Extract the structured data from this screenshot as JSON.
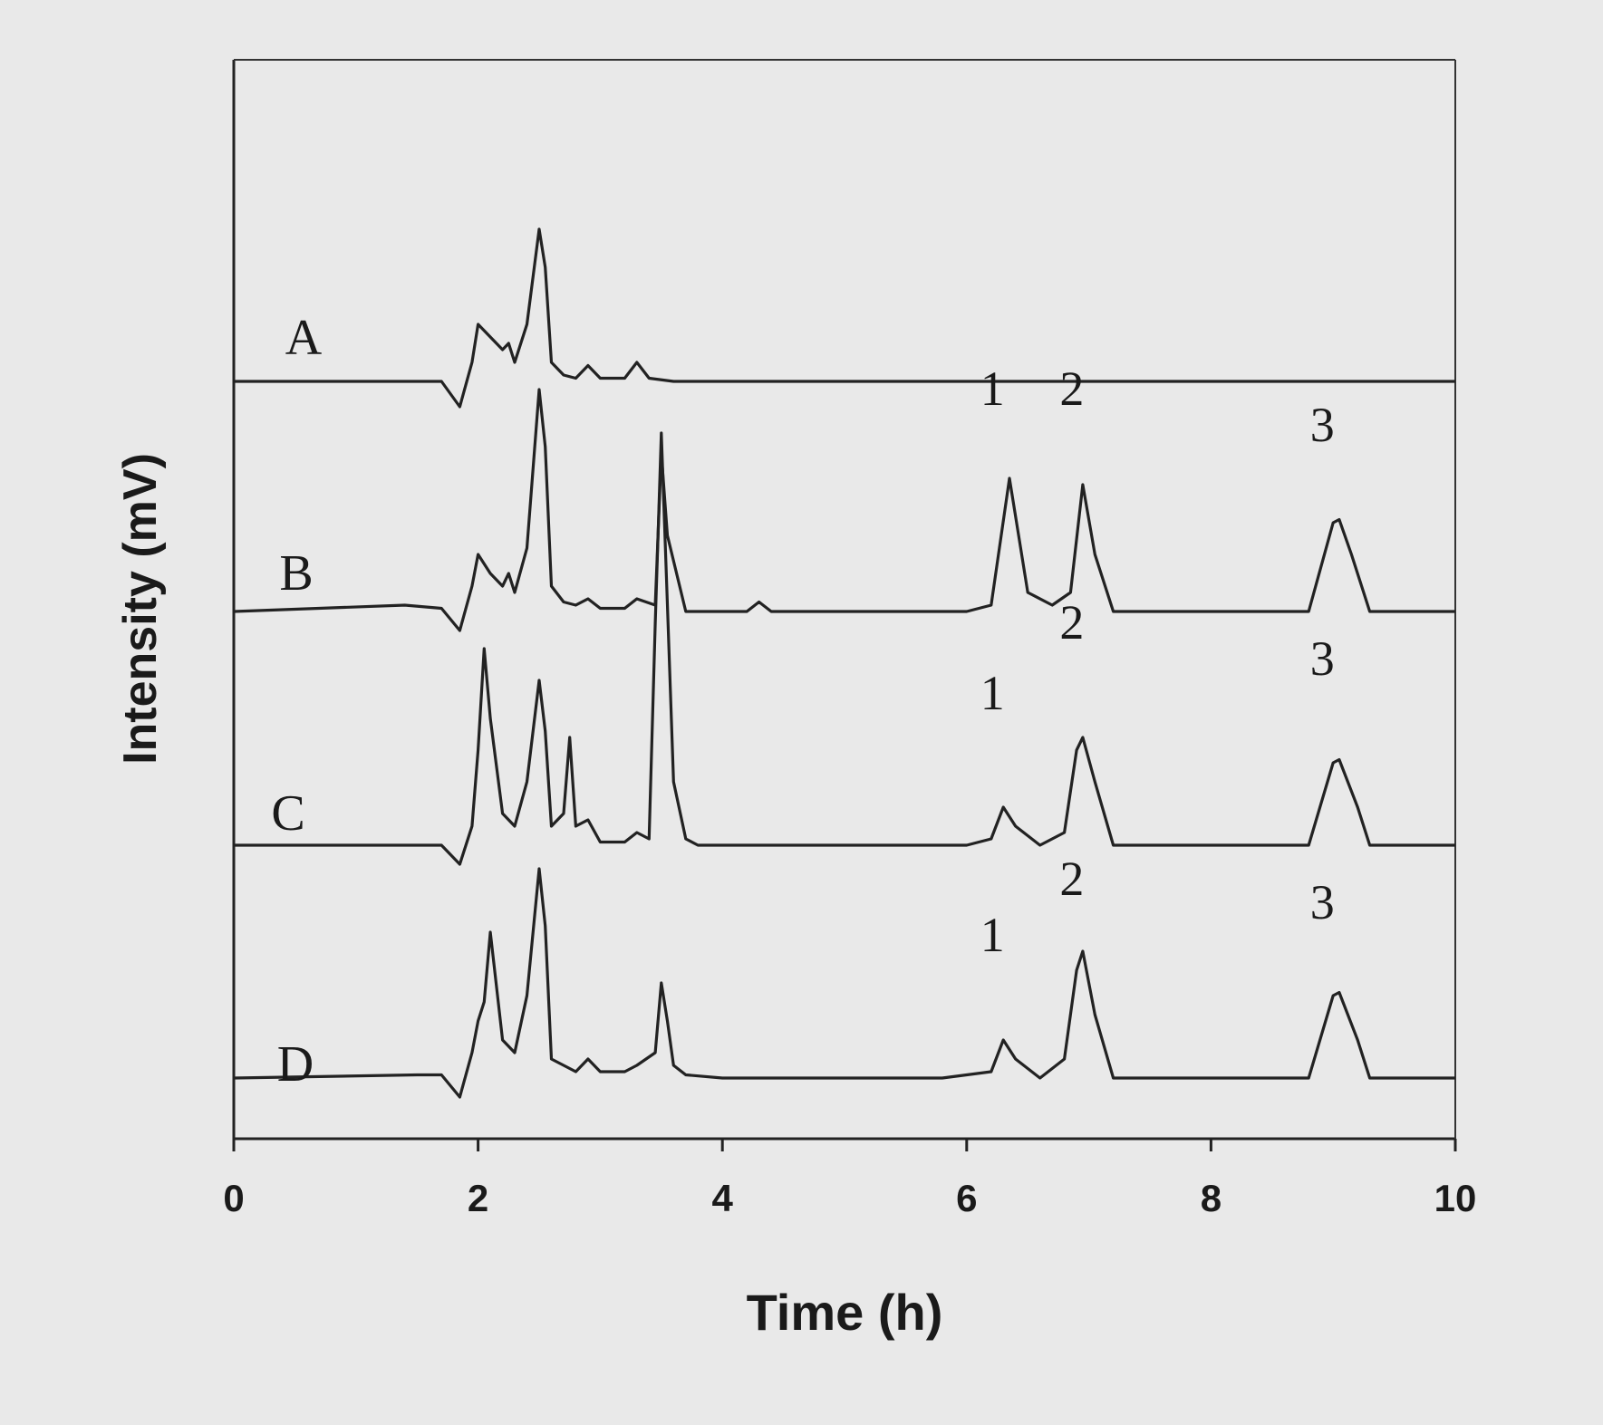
{
  "chart_data": {
    "type": "line",
    "xlabel": "Time (h)",
    "ylabel": "Intensity (mV)",
    "xlim": [
      0,
      10
    ],
    "xticks": [
      "0",
      "2",
      "4",
      "6",
      "8",
      "10"
    ],
    "y_ticks_shown": false,
    "legend": "none",
    "series": [
      {
        "name": "A",
        "x": [
          0,
          1.5,
          1.7,
          1.85,
          1.95,
          2.0,
          2.1,
          2.2,
          2.25,
          2.3,
          2.4,
          2.5,
          2.55,
          2.6,
          2.7,
          2.8,
          2.9,
          3.0,
          3.2,
          3.3,
          3.4,
          3.6,
          3.8,
          4.0,
          4.5,
          10
        ],
        "y": [
          0,
          0,
          0,
          -0.4,
          0.3,
          0.9,
          0.7,
          0.5,
          0.6,
          0.3,
          0.9,
          2.4,
          1.8,
          0.3,
          0.1,
          0.05,
          0.25,
          0.05,
          0.05,
          0.3,
          0.05,
          0,
          0,
          0,
          0,
          0
        ]
      },
      {
        "name": "B",
        "x": [
          0,
          1.4,
          1.7,
          1.85,
          1.95,
          2.0,
          2.1,
          2.2,
          2.25,
          2.3,
          2.4,
          2.5,
          2.55,
          2.6,
          2.7,
          2.8,
          2.9,
          3.0,
          3.2,
          3.3,
          3.45,
          3.5,
          3.55,
          3.7,
          4.2,
          4.3,
          4.4,
          6.0,
          6.2,
          6.35,
          6.5,
          6.7,
          6.85,
          6.95,
          7.05,
          7.2,
          8.8,
          9.0,
          9.05,
          9.15,
          9.3,
          10
        ],
        "y": [
          0,
          0.1,
          0.05,
          -0.3,
          0.4,
          0.9,
          0.6,
          0.4,
          0.6,
          0.3,
          1.0,
          3.5,
          2.6,
          0.4,
          0.15,
          0.1,
          0.2,
          0.05,
          0.05,
          0.2,
          0.1,
          2.5,
          1.2,
          0,
          0,
          0.15,
          0,
          0,
          0.1,
          2.1,
          0.3,
          0.1,
          0.3,
          2.0,
          0.9,
          0,
          0,
          1.4,
          1.45,
          0.9,
          0,
          0
        ]
      },
      {
        "name": "C",
        "x": [
          0,
          1.7,
          1.85,
          1.95,
          2.0,
          2.05,
          2.1,
          2.2,
          2.3,
          2.4,
          2.5,
          2.55,
          2.6,
          2.7,
          2.75,
          2.8,
          2.9,
          3.0,
          3.2,
          3.3,
          3.4,
          3.45,
          3.5,
          3.55,
          3.6,
          3.7,
          3.8,
          4.0,
          6.0,
          6.2,
          6.3,
          6.4,
          6.6,
          6.8,
          6.9,
          6.95,
          7.05,
          7.2,
          8.8,
          9.0,
          9.05,
          9.2,
          9.3,
          10
        ],
        "y": [
          0,
          0,
          -0.3,
          0.3,
          1.5,
          3.1,
          2.0,
          0.5,
          0.3,
          1.0,
          2.6,
          1.8,
          0.3,
          0.5,
          1.7,
          0.3,
          0.4,
          0.05,
          0.05,
          0.2,
          0.1,
          3.5,
          6.5,
          3.8,
          1.0,
          0.1,
          0,
          0,
          0,
          0.1,
          0.6,
          0.3,
          0,
          0.2,
          1.5,
          1.7,
          1.0,
          0,
          0,
          1.3,
          1.35,
          0.6,
          0,
          0
        ]
      },
      {
        "name": "D",
        "x": [
          0,
          1.5,
          1.7,
          1.85,
          1.95,
          2.0,
          2.05,
          2.1,
          2.2,
          2.3,
          2.4,
          2.5,
          2.55,
          2.6,
          2.7,
          2.8,
          2.9,
          3.0,
          3.2,
          3.3,
          3.45,
          3.5,
          3.55,
          3.6,
          3.7,
          4.0,
          5.0,
          5.8,
          6.0,
          6.2,
          6.3,
          6.4,
          6.6,
          6.8,
          6.9,
          6.95,
          7.05,
          7.2,
          8.8,
          9.0,
          9.05,
          9.2,
          9.3,
          9.6,
          10
        ],
        "y": [
          0,
          0.05,
          0.05,
          -0.3,
          0.4,
          0.9,
          1.2,
          2.3,
          0.6,
          0.4,
          1.3,
          3.3,
          2.4,
          0.3,
          0.2,
          0.1,
          0.3,
          0.1,
          0.1,
          0.2,
          0.4,
          1.5,
          0.9,
          0.2,
          0.05,
          0,
          0,
          0,
          0.05,
          0.1,
          0.6,
          0.3,
          0,
          0.3,
          1.7,
          2.0,
          1.0,
          0,
          0,
          1.3,
          1.35,
          0.6,
          0,
          0,
          0
        ]
      }
    ],
    "annotations": [
      {
        "series": "B",
        "label": "1",
        "x": 6.3
      },
      {
        "series": "B",
        "label": "2",
        "x": 6.95
      },
      {
        "series": "B",
        "label": "3",
        "x": 9.0
      },
      {
        "series": "C",
        "label": "1",
        "x": 6.3
      },
      {
        "series": "C",
        "label": "2",
        "x": 6.95
      },
      {
        "series": "C",
        "label": "3",
        "x": 9.0
      },
      {
        "series": "D",
        "label": "1",
        "x": 6.3
      },
      {
        "series": "D",
        "label": "2",
        "x": 6.95
      },
      {
        "series": "D",
        "label": "3",
        "x": 9.0
      }
    ],
    "colors": {
      "line": "#222222",
      "background": "#e9e9e9"
    }
  }
}
